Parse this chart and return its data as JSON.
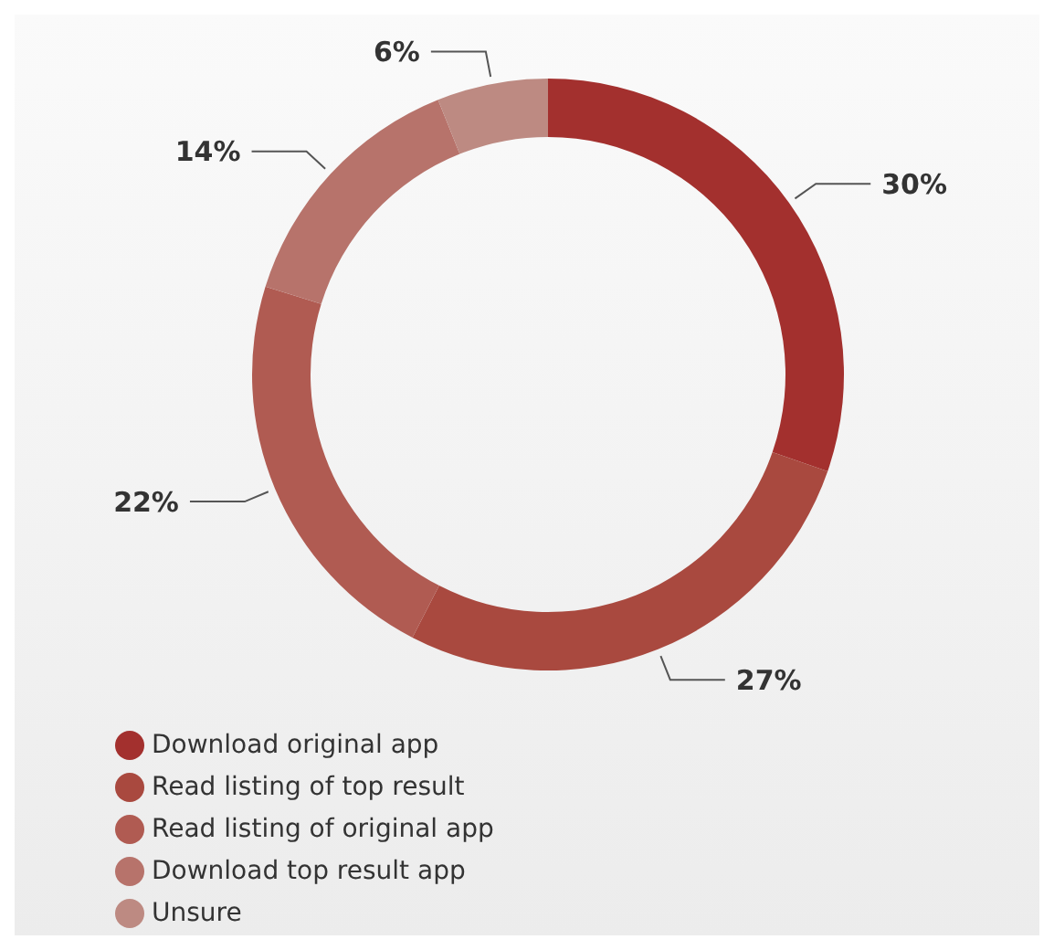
{
  "chart_data": {
    "type": "donut",
    "categories": [
      "Download original app",
      "Read listing of top result",
      "Read listing of original app",
      "Download top result app",
      "Unsure"
    ],
    "values": [
      30,
      27,
      22,
      14,
      6
    ],
    "colors": [
      "#a3302e",
      "#a9493f",
      "#b05b52",
      "#b7736b",
      "#bd8a82"
    ],
    "value_labels": [
      "30%",
      "27%",
      "22%",
      "14%",
      "6%"
    ],
    "legend": "bottom left"
  }
}
